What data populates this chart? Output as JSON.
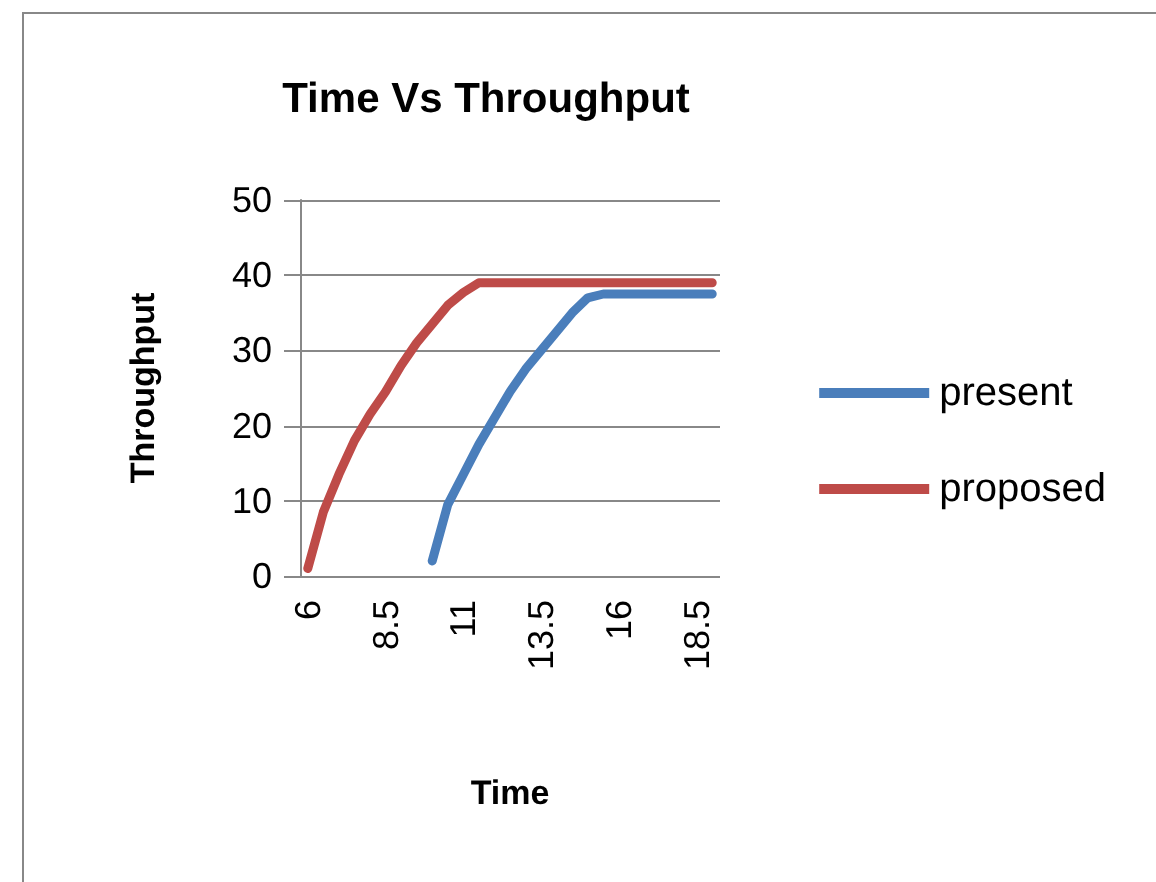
{
  "chart_data": {
    "type": "line",
    "title": "Time Vs Throughput",
    "xlabel": "Time",
    "ylabel": "Throughput",
    "categories": [
      "6",
      null,
      null,
      null,
      null,
      "8.5",
      null,
      null,
      null,
      null,
      "11",
      null,
      null,
      null,
      null,
      "13.5",
      null,
      null,
      null,
      null,
      "16",
      null,
      null,
      null,
      null,
      "18.5",
      null
    ],
    "series": [
      {
        "name": "present",
        "color": "#4a7ebb",
        "values": [
          null,
          null,
          null,
          null,
          null,
          null,
          null,
          null,
          2,
          9.5,
          13.5,
          17.5,
          21,
          24.5,
          27.5,
          30,
          32.5,
          35,
          37,
          37.5,
          37.5,
          37.5,
          37.5,
          37.5,
          37.5,
          37.5,
          37.5
        ]
      },
      {
        "name": "proposed",
        "color": "#be4b48",
        "values": [
          1,
          8.5,
          13.5,
          18,
          21.5,
          24.5,
          28,
          31,
          33.5,
          36,
          37.7,
          39,
          39,
          39,
          39,
          39,
          39,
          39,
          39,
          39,
          39,
          39,
          39,
          39,
          39,
          39,
          39
        ]
      }
    ],
    "ylim": [
      0,
      50
    ],
    "yticks": [
      0,
      10,
      20,
      30,
      40,
      50
    ],
    "grid": "y",
    "legend": "right",
    "marker": "none",
    "line_style": "solid"
  }
}
